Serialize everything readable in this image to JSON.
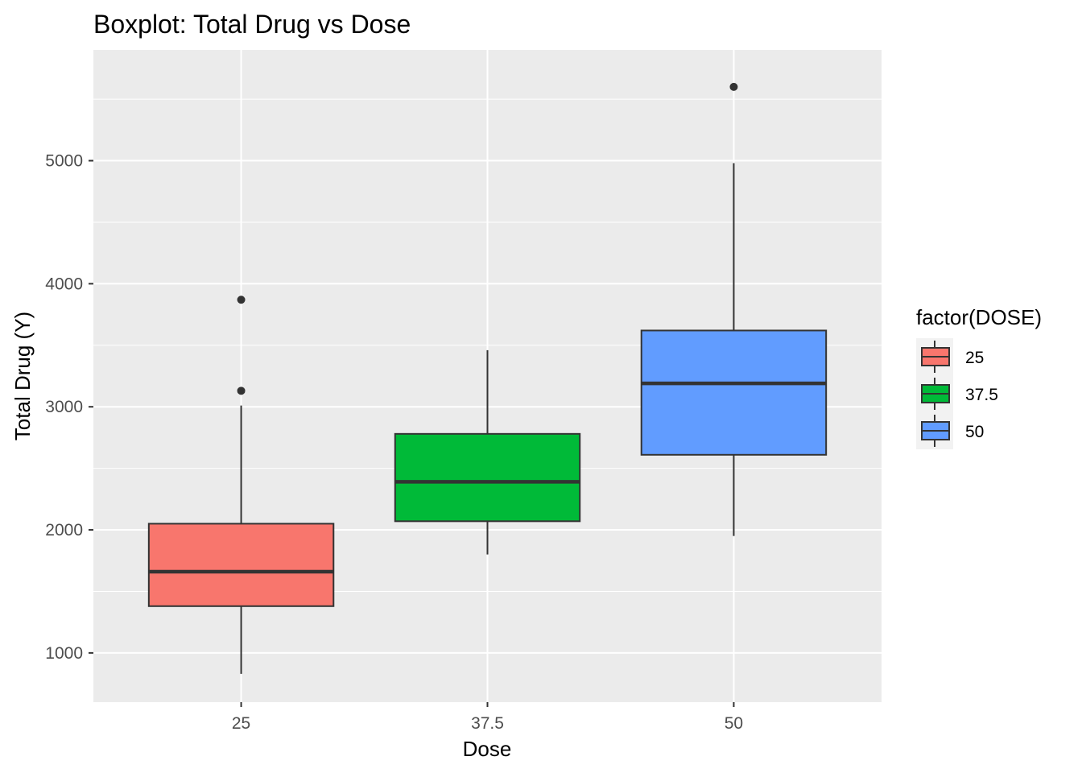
{
  "chart_data": {
    "type": "boxplot",
    "title": "Boxplot: Total Drug vs Dose",
    "xlabel": "Dose",
    "ylabel": "Total Drug (Y)",
    "categories": [
      "25",
      "37.5",
      "50"
    ],
    "ylim": [
      600,
      5900
    ],
    "yticks": [
      1000,
      2000,
      3000,
      4000,
      5000
    ],
    "grid": true,
    "legend": {
      "title": "factor(DOSE)",
      "placement": "right",
      "entries": [
        "25",
        "37.5",
        "50"
      ]
    },
    "series": [
      {
        "category": "25",
        "color": "#F8766D",
        "whisker_low": 830,
        "q1": 1380,
        "median": 1660,
        "q3": 2050,
        "whisker_high": 3010,
        "outliers": [
          3130,
          3870
        ]
      },
      {
        "category": "37.5",
        "color": "#00BA38",
        "whisker_low": 1800,
        "q1": 2070,
        "median": 2390,
        "q3": 2780,
        "whisker_high": 3460,
        "outliers": []
      },
      {
        "category": "50",
        "color": "#619CFF",
        "whisker_low": 1950,
        "q1": 2610,
        "median": 3190,
        "q3": 3620,
        "whisker_high": 4980,
        "outliers": [
          5600
        ]
      }
    ]
  }
}
